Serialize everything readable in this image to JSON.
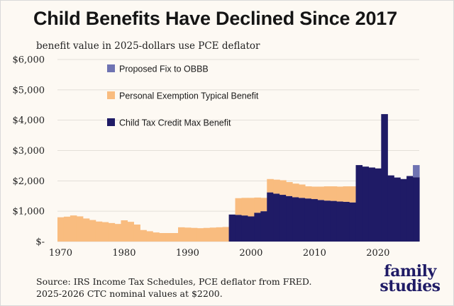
{
  "title": "Child Benefits Have Declined Since 2017",
  "subtitle": "benefit value in 2025-dollars use PCE deflator",
  "source": {
    "line1": "Source: IRS Income Tax Schedules, PCE deflator from FRED.",
    "line2": "2025-2026 CTC nominal values at $2200."
  },
  "logo": {
    "line1": "family",
    "line2": "studies"
  },
  "colors": {
    "background": "#fdf9f3",
    "gridline": "#e3dfd8",
    "ctc": "#1f1b66",
    "exemption": "#f9bc7f",
    "fix": "#6f73b2"
  },
  "chart_data": {
    "type": "bar",
    "stacked": true,
    "title": "Child Benefits Have Declined Since 2017",
    "subtitle": "benefit value in 2025-dollars use PCE deflator",
    "xlabel": "",
    "ylabel": "",
    "xlim": [
      1969.5,
      2026.5
    ],
    "ylim": [
      0,
      6000
    ],
    "grid": true,
    "legend_position": "top-center",
    "x_ticks": [
      1970,
      1980,
      1990,
      2000,
      2010,
      2020
    ],
    "x_tick_labels": [
      "1970",
      "1980",
      "1990",
      "2000",
      "2010",
      "2020"
    ],
    "y_ticks": [
      0,
      1000,
      2000,
      3000,
      4000,
      5000,
      6000
    ],
    "y_tick_labels": [
      "$-",
      "$1,000",
      "$2,000",
      "$3,000",
      "$4,000",
      "$5,000",
      "$6,000"
    ],
    "legend": [
      {
        "key": "fix",
        "label": "Proposed Fix to OBBB"
      },
      {
        "key": "exemption",
        "label": "Personal Exemption Typical Benefit"
      },
      {
        "key": "ctc",
        "label": "Child Tax Credit Max Benefit"
      }
    ],
    "x": [
      1970,
      1971,
      1972,
      1973,
      1974,
      1975,
      1976,
      1977,
      1978,
      1979,
      1980,
      1981,
      1982,
      1983,
      1984,
      1985,
      1986,
      1987,
      1988,
      1989,
      1990,
      1991,
      1992,
      1993,
      1994,
      1995,
      1996,
      1997,
      1998,
      1999,
      2000,
      2001,
      2002,
      2003,
      2004,
      2005,
      2006,
      2007,
      2008,
      2009,
      2010,
      2011,
      2012,
      2013,
      2014,
      2015,
      2016,
      2017,
      2018,
      2019,
      2020,
      2021,
      2022,
      2023,
      2024,
      2025,
      2026
    ],
    "series": [
      {
        "key": "ctc",
        "name": "Child Tax Credit Max Benefit",
        "values": [
          0,
          0,
          0,
          0,
          0,
          0,
          0,
          0,
          0,
          0,
          0,
          0,
          0,
          0,
          0,
          0,
          0,
          0,
          0,
          0,
          0,
          0,
          0,
          0,
          0,
          0,
          0,
          890,
          880,
          860,
          830,
          950,
          1000,
          1620,
          1580,
          1540,
          1500,
          1460,
          1440,
          1420,
          1400,
          1370,
          1350,
          1340,
          1320,
          1310,
          1290,
          2520,
          2470,
          2440,
          2410,
          4200,
          2180,
          2110,
          2060,
          2160,
          2120
        ]
      },
      {
        "key": "exemption",
        "name": "Personal Exemption Typical Benefit",
        "values": [
          800,
          820,
          860,
          830,
          760,
          710,
          660,
          640,
          610,
          580,
          700,
          650,
          560,
          380,
          340,
          300,
          280,
          280,
          280,
          470,
          460,
          450,
          440,
          450,
          460,
          470,
          480,
          0,
          550,
          580,
          610,
          500,
          440,
          440,
          460,
          480,
          460,
          450,
          440,
          400,
          410,
          440,
          470,
          480,
          490,
          510,
          530,
          0,
          0,
          0,
          0,
          0,
          0,
          0,
          0,
          0,
          0
        ]
      },
      {
        "key": "fix",
        "name": "Proposed Fix to OBBB",
        "values": [
          0,
          0,
          0,
          0,
          0,
          0,
          0,
          0,
          0,
          0,
          0,
          0,
          0,
          0,
          0,
          0,
          0,
          0,
          0,
          0,
          0,
          0,
          0,
          0,
          0,
          0,
          0,
          0,
          0,
          0,
          0,
          0,
          0,
          0,
          0,
          0,
          0,
          0,
          0,
          0,
          0,
          0,
          0,
          0,
          0,
          0,
          0,
          0,
          0,
          0,
          0,
          0,
          0,
          0,
          0,
          0,
          400
        ]
      }
    ]
  }
}
